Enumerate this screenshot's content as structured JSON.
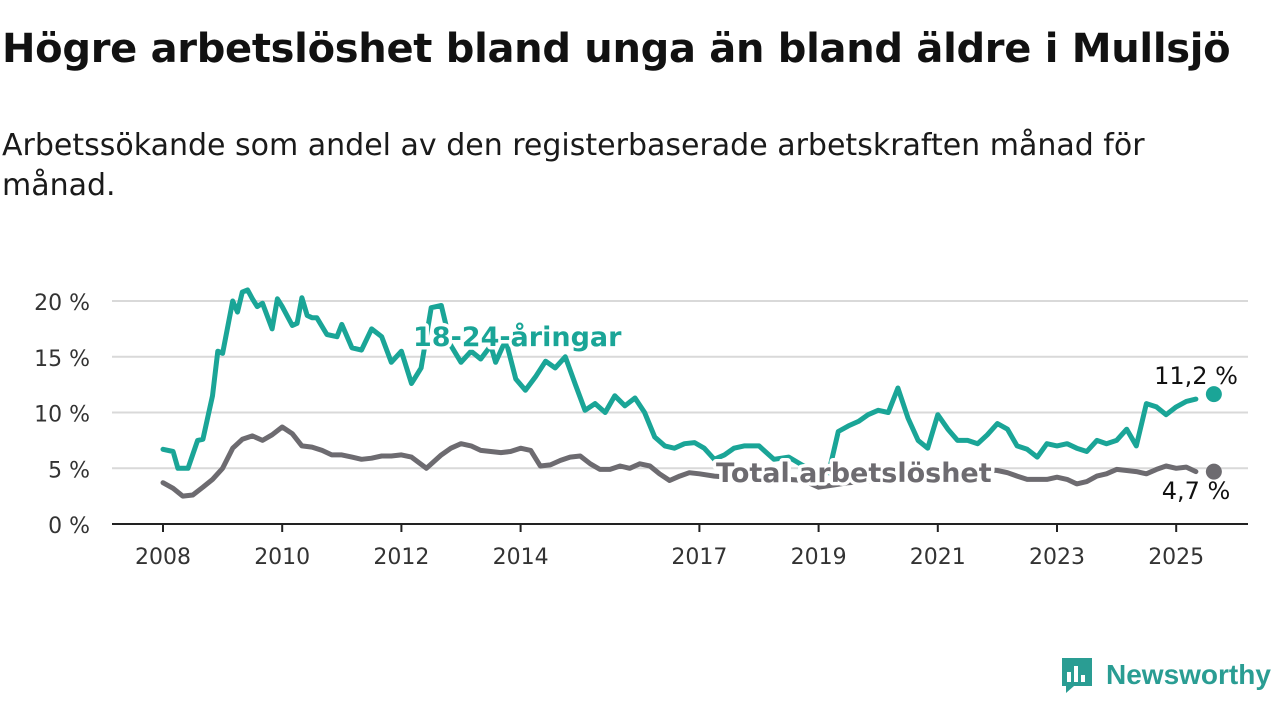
{
  "title": "Högre arbetslöshet bland unga än bland äldre i Mullsjö",
  "subtitle": "Arbetssökande som andel av den registerbaserade arbetskraften månad för månad.",
  "logo": {
    "text": "Newsworthy",
    "icon": "bar-chart-logo-icon"
  },
  "chart_data": {
    "type": "line",
    "xlim": [
      2008,
      2025.9
    ],
    "ylim": [
      0,
      20
    ],
    "y_ticks": [
      0,
      5,
      10,
      15,
      20
    ],
    "y_tick_labels": [
      "0 %",
      "5 %",
      "10 %",
      "15 %",
      "20 %"
    ],
    "x_ticks": [
      2008,
      2010,
      2012,
      2014,
      2017,
      2019,
      2021,
      2023,
      2025
    ],
    "x_tick_labels": [
      "2008",
      "2010",
      "2012",
      "2014",
      "2017",
      "2019",
      "2021",
      "2023",
      "2025"
    ],
    "grid": "horizontal",
    "legend": "inline labels",
    "series": [
      {
        "name": "18-24-åringar",
        "color": "#1aa597",
        "end_label": "11,2 %",
        "x": [
          2008.0,
          2008.17,
          2008.25,
          2008.42,
          2008.58,
          2008.67,
          2008.83,
          2008.92,
          2009.0,
          2009.17,
          2009.25,
          2009.33,
          2009.42,
          2009.5,
          2009.58,
          2009.67,
          2009.83,
          2009.92,
          2010.0,
          2010.17,
          2010.25,
          2010.33,
          2010.42,
          2010.5,
          2010.58,
          2010.75,
          2010.92,
          2011.0,
          2011.17,
          2011.33,
          2011.5,
          2011.67,
          2011.83,
          2012.0,
          2012.17,
          2012.33,
          2012.5,
          2012.67,
          2012.83,
          2013.0,
          2013.17,
          2013.33,
          2013.5,
          2013.58,
          2013.75,
          2013.92,
          2014.08,
          2014.25,
          2014.42,
          2014.58,
          2014.75,
          2014.92,
          2015.08,
          2015.25,
          2015.42,
          2015.58,
          2015.75,
          2015.92,
          2016.08,
          2016.25,
          2016.42,
          2016.58,
          2016.75,
          2016.92,
          2017.08,
          2017.25,
          2017.42,
          2017.58,
          2017.75,
          2018.0,
          2018.25,
          2018.5,
          2018.75,
          2019.0,
          2019.17,
          2019.33,
          2019.5,
          2019.67,
          2019.83,
          2020.0,
          2020.17,
          2020.33,
          2020.5,
          2020.67,
          2020.83,
          2021.0,
          2021.17,
          2021.33,
          2021.5,
          2021.67,
          2021.83,
          2022.0,
          2022.17,
          2022.33,
          2022.5,
          2022.67,
          2022.83,
          2023.0,
          2023.17,
          2023.33,
          2023.5,
          2023.67,
          2023.83,
          2024.0,
          2024.17,
          2024.33,
          2024.5,
          2024.67,
          2024.83,
          2025.0,
          2025.17,
          2025.33
        ],
        "values": [
          6.7,
          6.5,
          5.0,
          5.0,
          7.5,
          7.6,
          11.5,
          15.5,
          15.3,
          20.0,
          19.0,
          20.8,
          21.0,
          20.2,
          19.5,
          19.8,
          17.5,
          20.2,
          19.5,
          17.8,
          18.0,
          20.3,
          18.7,
          18.5,
          18.5,
          17.0,
          16.8,
          17.9,
          15.8,
          15.6,
          17.5,
          16.8,
          14.5,
          15.5,
          12.6,
          14.0,
          19.4,
          19.6,
          16.0,
          14.5,
          15.5,
          14.8,
          16.0,
          14.5,
          16.5,
          13.0,
          12.0,
          13.2,
          14.6,
          14.0,
          15.0,
          12.5,
          10.2,
          10.8,
          10.0,
          11.5,
          10.6,
          11.3,
          10.0,
          7.8,
          7.0,
          6.8,
          7.2,
          7.3,
          6.8,
          5.8,
          6.2,
          6.8,
          7.0,
          7.0,
          5.8,
          6.0,
          5.2,
          4.7,
          4.6,
          8.3,
          8.8,
          9.2,
          9.8,
          10.2,
          10.0,
          12.2,
          9.5,
          7.5,
          6.8,
          9.8,
          8.5,
          7.5,
          7.5,
          7.2,
          8.0,
          9.0,
          8.5,
          7.0,
          6.7,
          6.0,
          7.2,
          7.0,
          7.2,
          6.8,
          6.5,
          7.5,
          7.2,
          7.5,
          8.5,
          7.0,
          10.8,
          10.5,
          9.8,
          10.5,
          11.0,
          11.2
        ]
      },
      {
        "name": "Total arbetslöshet",
        "color": "#6d6b70",
        "end_label": "4,7 %",
        "x": [
          2008.0,
          2008.17,
          2008.33,
          2008.5,
          2008.67,
          2008.83,
          2009.0,
          2009.17,
          2009.33,
          2009.5,
          2009.67,
          2009.83,
          2010.0,
          2010.17,
          2010.33,
          2010.5,
          2010.67,
          2010.83,
          2011.0,
          2011.17,
          2011.33,
          2011.5,
          2011.67,
          2011.83,
          2012.0,
          2012.17,
          2012.42,
          2012.67,
          2012.83,
          2013.0,
          2013.17,
          2013.33,
          2013.5,
          2013.67,
          2013.83,
          2014.0,
          2014.17,
          2014.33,
          2014.5,
          2014.67,
          2014.83,
          2015.0,
          2015.17,
          2015.33,
          2015.5,
          2015.67,
          2015.83,
          2016.0,
          2016.17,
          2016.33,
          2016.5,
          2016.67,
          2016.83,
          2017.0,
          2017.25,
          2017.5,
          2017.75,
          2018.0,
          2018.25,
          2018.5,
          2018.75,
          2019.0,
          2019.25,
          2019.5,
          2019.75,
          2020.0,
          2020.25,
          2020.5,
          2020.75,
          2021.0,
          2021.25,
          2021.5,
          2021.75,
          2022.0,
          2022.17,
          2022.33,
          2022.5,
          2022.67,
          2022.83,
          2023.0,
          2023.17,
          2023.33,
          2023.5,
          2023.67,
          2023.83,
          2024.0,
          2024.17,
          2024.33,
          2024.5,
          2024.67,
          2024.83,
          2025.0,
          2025.17,
          2025.33
        ],
        "values": [
          3.7,
          3.2,
          2.5,
          2.6,
          3.3,
          4.0,
          5.0,
          6.8,
          7.6,
          7.9,
          7.5,
          8.0,
          8.7,
          8.1,
          7.0,
          6.9,
          6.6,
          6.2,
          6.2,
          6.0,
          5.8,
          5.9,
          6.1,
          6.1,
          6.2,
          6.0,
          5.0,
          6.2,
          6.8,
          7.2,
          7.0,
          6.6,
          6.5,
          6.4,
          6.5,
          6.8,
          6.6,
          5.2,
          5.3,
          5.7,
          6.0,
          6.1,
          5.4,
          4.9,
          4.9,
          5.2,
          5.0,
          5.4,
          5.2,
          4.5,
          3.9,
          4.3,
          4.6,
          4.5,
          4.3,
          4.2,
          4.1,
          4.1,
          4.0,
          4.0,
          3.9,
          3.3,
          3.5,
          3.7,
          3.8,
          4.0,
          4.1,
          4.2,
          4.4,
          4.6,
          4.7,
          4.8,
          4.9,
          4.8,
          4.6,
          4.3,
          4.0,
          4.0,
          4.0,
          4.2,
          4.0,
          3.6,
          3.8,
          4.3,
          4.5,
          4.9,
          4.8,
          4.7,
          4.5,
          4.9,
          5.2,
          5.0,
          5.1,
          4.7
        ]
      }
    ]
  }
}
